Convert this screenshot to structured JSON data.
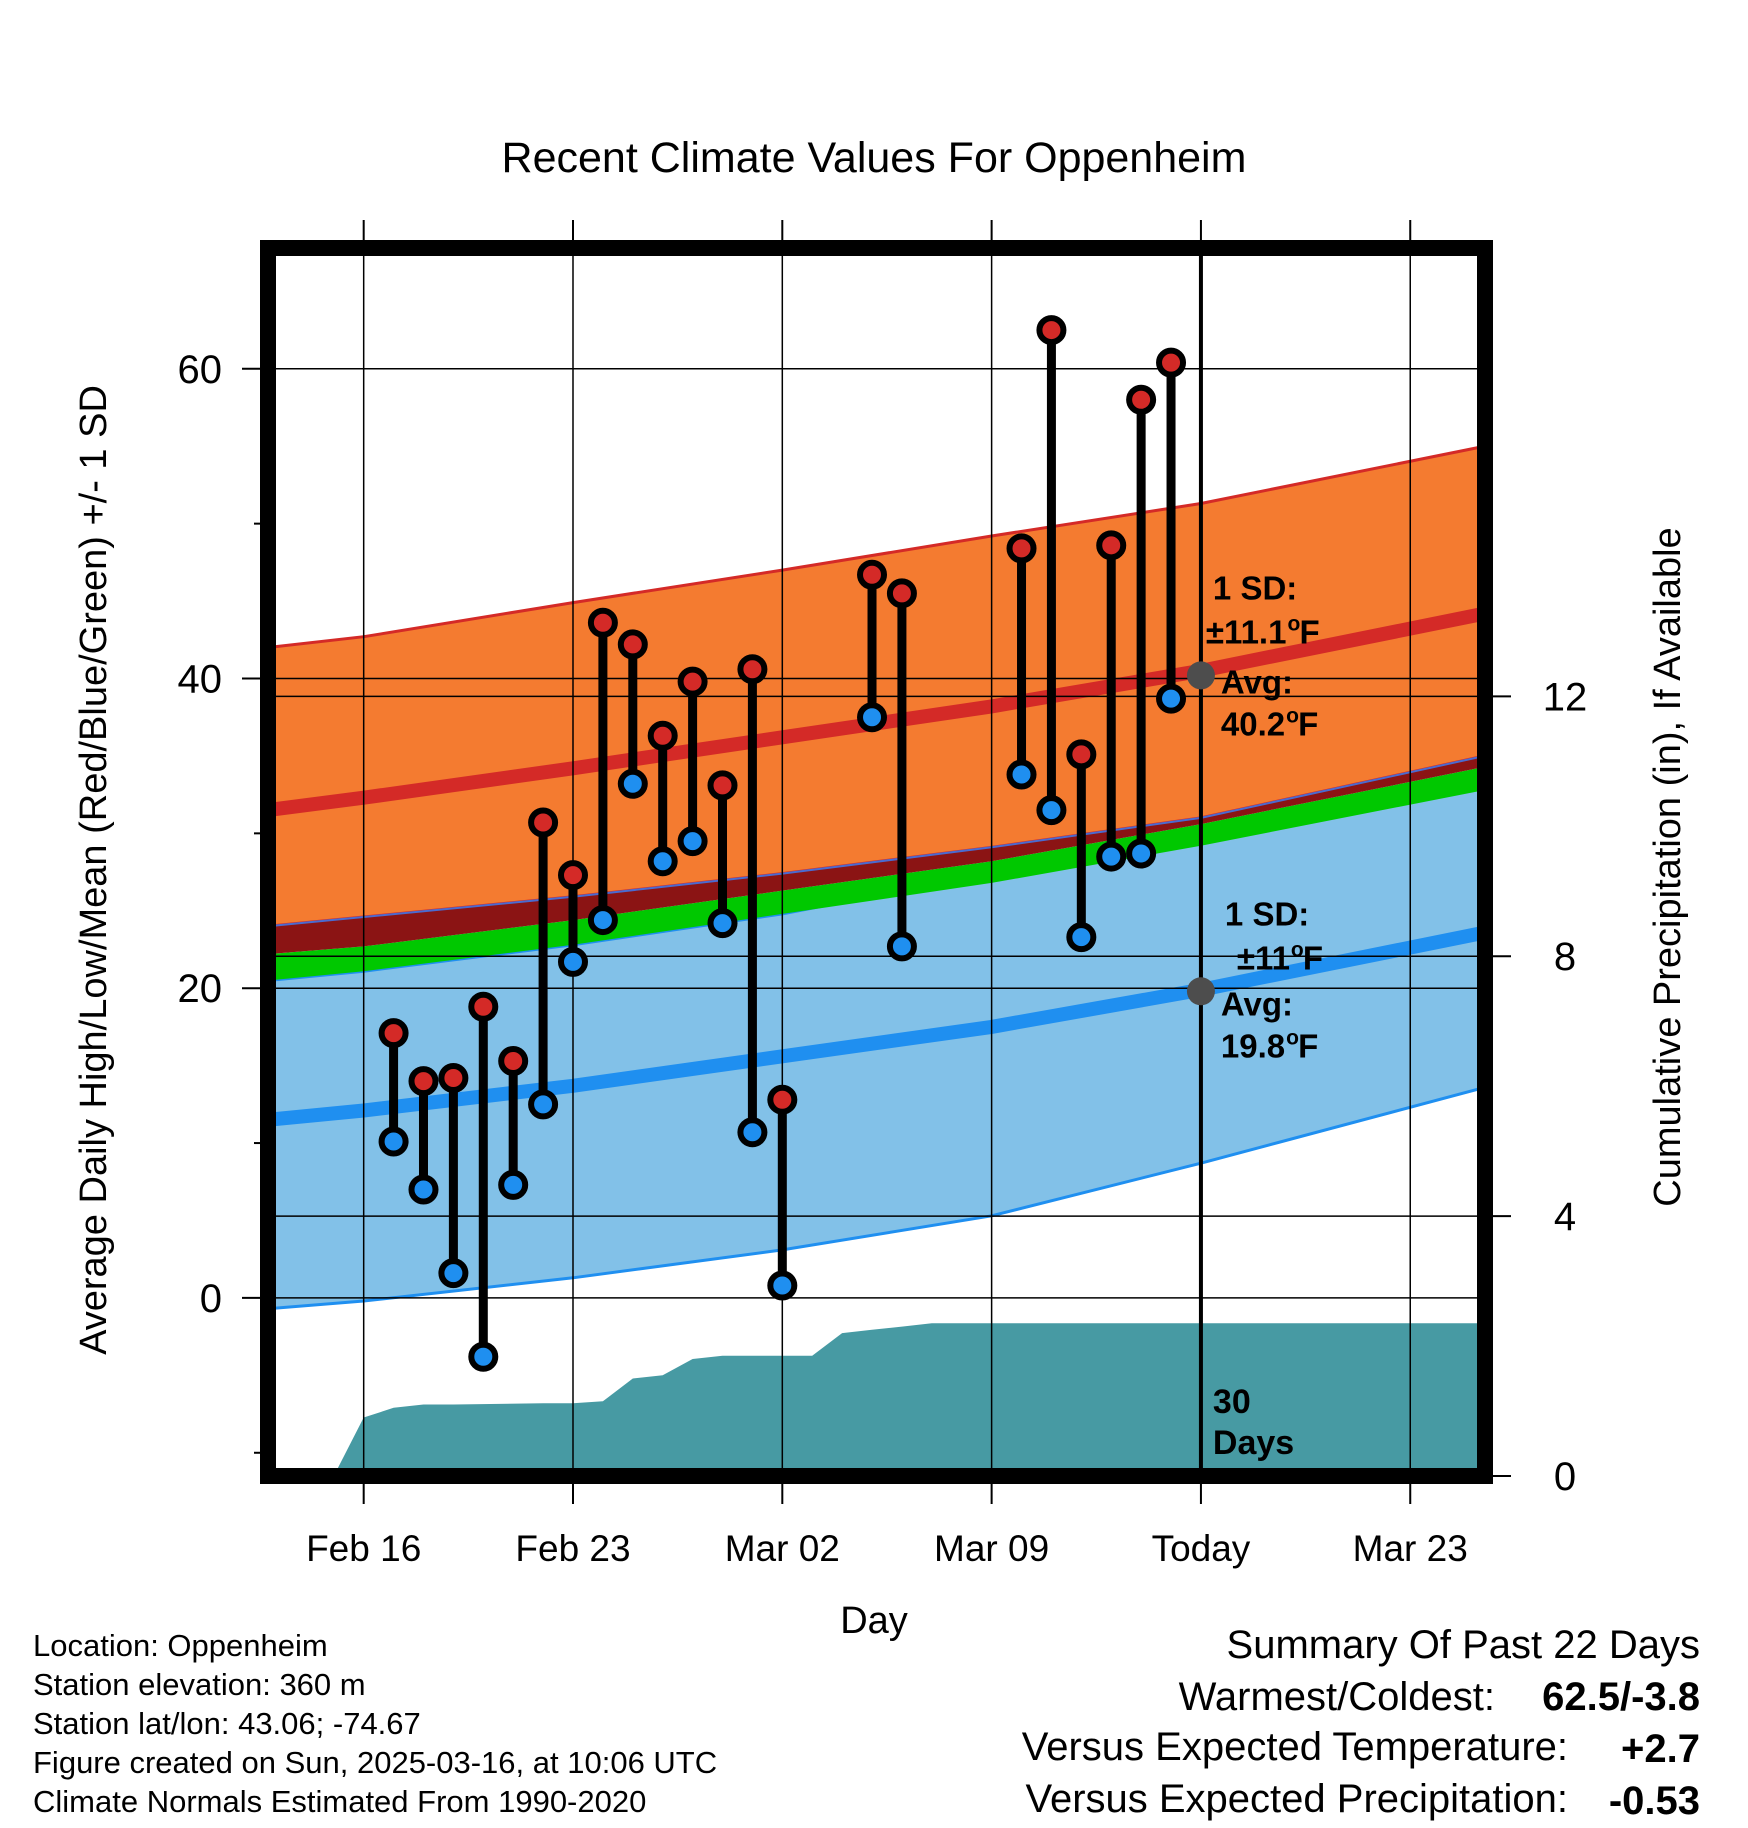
{
  "chart_data": {
    "type": "line",
    "title": "Recent Climate Values For Oppenheim",
    "xlabel": "Day",
    "ylabel_left": "Average Daily High/Low/Mean (Red/Blue/Green) +/- 1 SD",
    "ylabel_right": "Cumulative Precipitation (in), If Available",
    "x_tick_labels": [
      "Feb 16",
      "Feb 23",
      "Mar 02",
      "Mar 09",
      "Today",
      "Mar 23"
    ],
    "x_tick_days": [
      0,
      7,
      14,
      21,
      28,
      35
    ],
    "x_range_days": [
      -3.2,
      37.5
    ],
    "today_day": 28,
    "ylim_left": [
      -11.5,
      67.8
    ],
    "y_ticks_left": [
      0,
      20,
      40,
      60
    ],
    "y_minor_ticks_left": [
      -10,
      10,
      30,
      50
    ],
    "ylim_right": [
      0,
      18.9
    ],
    "y_ticks_right": [
      0,
      4,
      8,
      12
    ],
    "grid": true,
    "normals": {
      "days": [
        -3.2,
        0,
        7,
        14,
        21,
        28,
        37.5
      ],
      "high_mean": [
        31.5,
        32.3,
        34.2,
        36.2,
        38.2,
        40.5,
        44.2
      ],
      "high_sd_upper": [
        42.0,
        42.7,
        44.9,
        47.0,
        49.2,
        51.3,
        55.0
      ],
      "high_sd_lower": [
        24.0,
        24.6,
        25.9,
        27.4,
        29.1,
        31.0,
        35.0
      ],
      "low_mean": [
        11.5,
        12.1,
        13.7,
        15.6,
        17.5,
        19.9,
        23.6
      ],
      "low_sd_upper": [
        20.5,
        21.1,
        22.8,
        24.8,
        27.4,
        29.8,
        33.0
      ],
      "low_sd_lower": [
        -0.7,
        -0.2,
        1.3,
        3.1,
        5.3,
        8.7,
        13.6
      ],
      "mean_upper": [
        22.2,
        22.7,
        24.4,
        26.3,
        28.2,
        30.6,
        34.3
      ],
      "mean_lower": [
        20.5,
        21.1,
        22.8,
        24.8,
        26.8,
        29.2,
        32.8
      ]
    },
    "series": [
      {
        "name": "High",
        "days": [
          1,
          2,
          3,
          4,
          5,
          6,
          7,
          8,
          9,
          10,
          11,
          12,
          13,
          14,
          17,
          18,
          22,
          23,
          24,
          25,
          26,
          27
        ],
        "values": [
          17.1,
          14.0,
          14.2,
          18.8,
          15.3,
          30.7,
          27.3,
          43.6,
          42.2,
          36.3,
          39.8,
          33.1,
          40.6,
          12.8,
          46.7,
          45.5,
          48.4,
          62.5,
          35.1,
          48.6,
          58.0,
          60.4
        ]
      },
      {
        "name": "Low",
        "days": [
          1,
          2,
          3,
          4,
          5,
          6,
          7,
          8,
          9,
          10,
          11,
          12,
          13,
          14,
          17,
          18,
          22,
          23,
          24,
          25,
          26,
          27
        ],
        "values": [
          10.1,
          7.0,
          1.6,
          -3.8,
          7.3,
          12.5,
          21.7,
          24.4,
          33.2,
          28.2,
          29.5,
          24.2,
          10.7,
          0.8,
          37.5,
          22.7,
          33.8,
          31.5,
          23.3,
          28.5,
          28.7,
          38.7
        ]
      }
    ],
    "precip": {
      "days": [
        -3.2,
        -1.0,
        0,
        1,
        2,
        3,
        6,
        7,
        8,
        9,
        10,
        11,
        12,
        13,
        15,
        16,
        17,
        18,
        19,
        20,
        21,
        28,
        37.5
      ],
      "values": [
        0,
        0,
        0.9,
        1.05,
        1.1,
        1.1,
        1.12,
        1.12,
        1.15,
        1.5,
        1.55,
        1.8,
        1.85,
        1.85,
        1.85,
        2.2,
        2.25,
        2.3,
        2.35,
        2.35,
        2.35,
        2.35,
        2.35
      ]
    },
    "annotations": {
      "high_sd_title": "1 SD:",
      "high_sd_value": "±11.1",
      "high_avg_title": "Avg:",
      "high_avg_value": "40.2",
      "low_sd_title": "1 SD:",
      "low_sd_value": "±11",
      "low_avg_title": "Avg:",
      "low_avg_value": "19.8",
      "unit_degree": "o",
      "unit_f": "F",
      "days_count": "30",
      "days_word": "Days"
    },
    "colors": {
      "high_band": "#f47b30",
      "high_line": "#d42a27",
      "low_band": "#82c1e8",
      "low_line": "#1f8ff0",
      "mean_band": "#00c800",
      "overlap_band": "#8b1414",
      "precip_fill": "#479aa3",
      "high_marker": "#d42a27",
      "low_marker": "#1f8ff0",
      "annotation_text": "#555555",
      "avg_marker": "#4d4d4d"
    }
  },
  "footer_left": [
    "Location: Oppenheim",
    "Station elevation: 360 m",
    "Station lat/lon: 43.06; -74.67",
    "Figure created on Sun, 2025-03-16, at 10:06 UTC",
    "Climate Normals Estimated From 1990-2020"
  ],
  "summary": {
    "title": "Summary Of Past 22 Days",
    "warm_cold_label": "Warmest/Coldest:",
    "warm_cold_value": "62.5/-3.8",
    "temp_label": "Versus Expected Temperature:",
    "temp_value": "+2.7",
    "temp_color": "#d42a27",
    "precip_label": "Versus Expected Precipitation:",
    "precip_value": "-0.53",
    "precip_color": "#a0522d"
  }
}
